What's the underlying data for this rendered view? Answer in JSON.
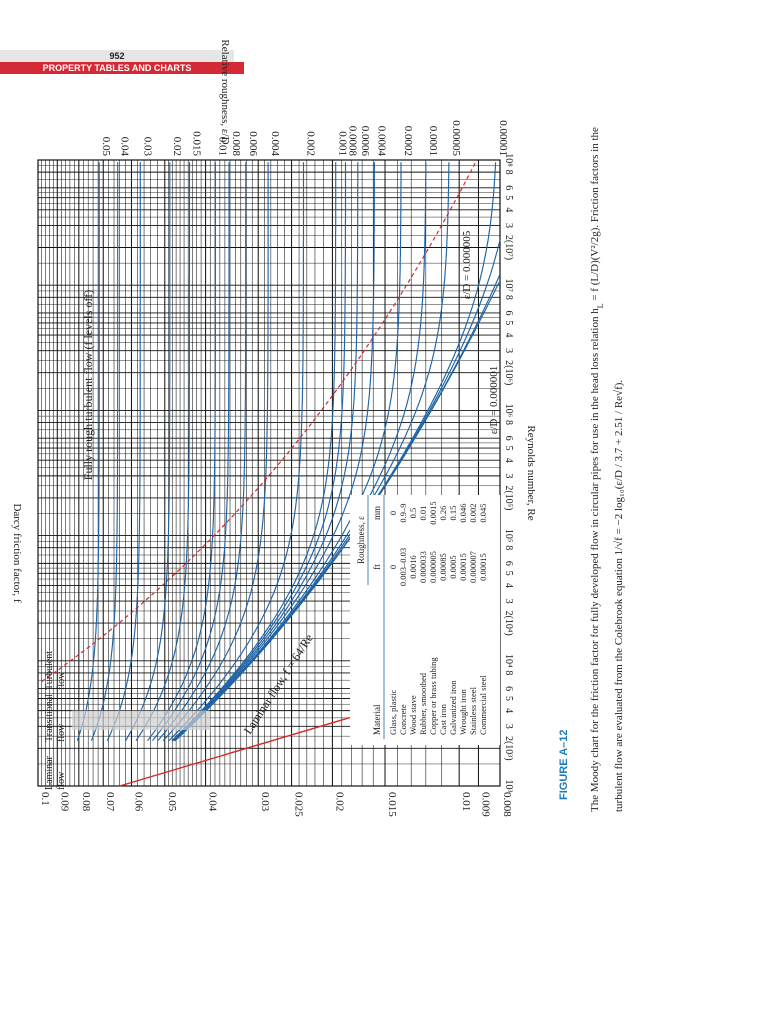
{
  "header": {
    "page_number": "952",
    "section_title": "PROPERTY TABLES AND CHARTS"
  },
  "figure": {
    "label": "FIGURE A–12",
    "caption_line1": "The Moody chart for the friction factor for fully developed flow in circular pipes for use in the head loss relation h",
    "caption_hl_sub": "L",
    "caption_hl_tail": " = f (L/D)(V²/2g). Friction factors in the",
    "caption_line2": "turbulent flow are evaluated from the Colebrook equation 1/√f = −2 log₁₀(ε/D / 3.7 + 2.51 / Re√f)."
  },
  "colors": {
    "grid": "#111111",
    "curve": "#1f64a8",
    "laminar": "#d62828",
    "boundary": "#d62828",
    "header_bar": "#d42a35",
    "figure_label": "#1a7bbf"
  },
  "chart_data": {
    "type": "line",
    "title": "",
    "xlabel": "Reynolds number, Re",
    "ylabel": "Darcy friction factor, f",
    "y2label": "Relative roughness, ε/D",
    "x_scale": "log",
    "y_scale": "log",
    "xlim": [
      1000,
      100000000
    ],
    "ylim": [
      0.008,
      0.1
    ],
    "x_tick_labels": [
      {
        "v": 1000,
        "t": "10³"
      },
      {
        "v": 2000,
        "t": "2(10³)"
      },
      {
        "v": 3000,
        "t": "3"
      },
      {
        "v": 4000,
        "t": "4"
      },
      {
        "v": 5000,
        "t": "5"
      },
      {
        "v": 6000,
        "t": "6"
      },
      {
        "v": 8000,
        "t": "8"
      },
      {
        "v": 10000,
        "t": "10⁴"
      },
      {
        "v": 20000,
        "t": "2(10⁴)"
      },
      {
        "v": 30000,
        "t": "3"
      },
      {
        "v": 40000,
        "t": "4"
      },
      {
        "v": 50000,
        "t": "5"
      },
      {
        "v": 60000,
        "t": "6"
      },
      {
        "v": 80000,
        "t": "8"
      },
      {
        "v": 100000,
        "t": "10⁵"
      },
      {
        "v": 200000,
        "t": "2(10⁵)"
      },
      {
        "v": 300000,
        "t": "3"
      },
      {
        "v": 400000,
        "t": "4"
      },
      {
        "v": 500000,
        "t": "5"
      },
      {
        "v": 600000,
        "t": "6"
      },
      {
        "v": 800000,
        "t": "8"
      },
      {
        "v": 1000000,
        "t": "10⁶"
      },
      {
        "v": 2000000,
        "t": "2(10⁶)"
      },
      {
        "v": 3000000,
        "t": "3"
      },
      {
        "v": 4000000,
        "t": "4"
      },
      {
        "v": 5000000,
        "t": "5"
      },
      {
        "v": 6000000,
        "t": "6"
      },
      {
        "v": 8000000,
        "t": "8"
      },
      {
        "v": 10000000,
        "t": "10⁷"
      },
      {
        "v": 20000000,
        "t": "2(10⁷)"
      },
      {
        "v": 30000000,
        "t": "3"
      },
      {
        "v": 40000000,
        "t": "4"
      },
      {
        "v": 50000000,
        "t": "5"
      },
      {
        "v": 60000000,
        "t": "6"
      },
      {
        "v": 80000000,
        "t": "8"
      },
      {
        "v": 100000000,
        "t": "10⁸"
      }
    ],
    "y_tick_labels": [
      {
        "v": 0.1,
        "t": "0.1"
      },
      {
        "v": 0.09,
        "t": "0.09"
      },
      {
        "v": 0.08,
        "t": "0.08"
      },
      {
        "v": 0.07,
        "t": "0.07"
      },
      {
        "v": 0.06,
        "t": "0.06"
      },
      {
        "v": 0.05,
        "t": "0.05"
      },
      {
        "v": 0.04,
        "t": "0.04"
      },
      {
        "v": 0.03,
        "t": "0.03"
      },
      {
        "v": 0.025,
        "t": "0.025"
      },
      {
        "v": 0.02,
        "t": "0.02"
      },
      {
        "v": 0.015,
        "t": "0.015"
      },
      {
        "v": 0.01,
        "t": "0.01"
      },
      {
        "v": 0.009,
        "t": "0.009"
      },
      {
        "v": 0.008,
        "t": "0.008"
      }
    ],
    "relative_roughness": [
      0.05,
      0.04,
      0.03,
      0.02,
      0.015,
      0.01,
      0.008,
      0.006,
      0.004,
      0.002,
      0.001,
      0.0008,
      0.0006,
      0.0004,
      0.0002,
      0.0001,
      5e-05,
      1e-05
    ],
    "roughness_labels": [
      "0.05",
      "0.04",
      "0.03",
      "0.02",
      "0.015",
      "0.01",
      "0.008",
      "0.006",
      "0.004",
      "0.002",
      "0.001",
      "0.0008",
      "0.0006",
      "0.0004",
      "0.0002",
      "0.0001",
      "0.00005",
      "0.00001"
    ],
    "extra_curves": [
      5e-06,
      1e-06,
      0
    ],
    "laminar": {
      "equation": "f = 64/Re",
      "re_range": [
        1000,
        4000
      ]
    },
    "annotations": {
      "laminar_flow": "Laminar flow, f = 64/Re",
      "fully_rough": "Fully rough turbulent flow (f levels off)",
      "smooth_pipes": "Smooth pipes",
      "smooth_eps": "ε/D = 0",
      "eps_000001": "ε/D = 0.000001",
      "eps_000005": "ε/D = 0.000005",
      "regime_laminar": "Laminar",
      "regime_flow": "flow",
      "regime_transitional": "Transitional",
      "regime_turbulent": "Turbulent"
    },
    "roughness_table": {
      "header_group": "Roughness, ε",
      "columns": [
        "Material",
        "ft",
        "mm"
      ],
      "rows": [
        [
          "Glass, plastic",
          "0",
          "0"
        ],
        [
          "Concrete",
          "0.003–0.03",
          "0.9–9"
        ],
        [
          "Wood stave",
          "0.0016",
          "0.5"
        ],
        [
          "Rubber, smoothed",
          "0.000033",
          "0.01"
        ],
        [
          "Copper or brass tubing",
          "0.000005",
          "0.0015"
        ],
        [
          "Cast iron",
          "0.00085",
          "0.26"
        ],
        [
          "Galvanized iron",
          "0.0005",
          "0.15"
        ],
        [
          "Wrought iron",
          "0.00015",
          "0.046"
        ],
        [
          "Stainless steel",
          "0.000007",
          "0.002"
        ],
        [
          "Commercial steel",
          "0.00015",
          "0.045"
        ]
      ]
    }
  }
}
